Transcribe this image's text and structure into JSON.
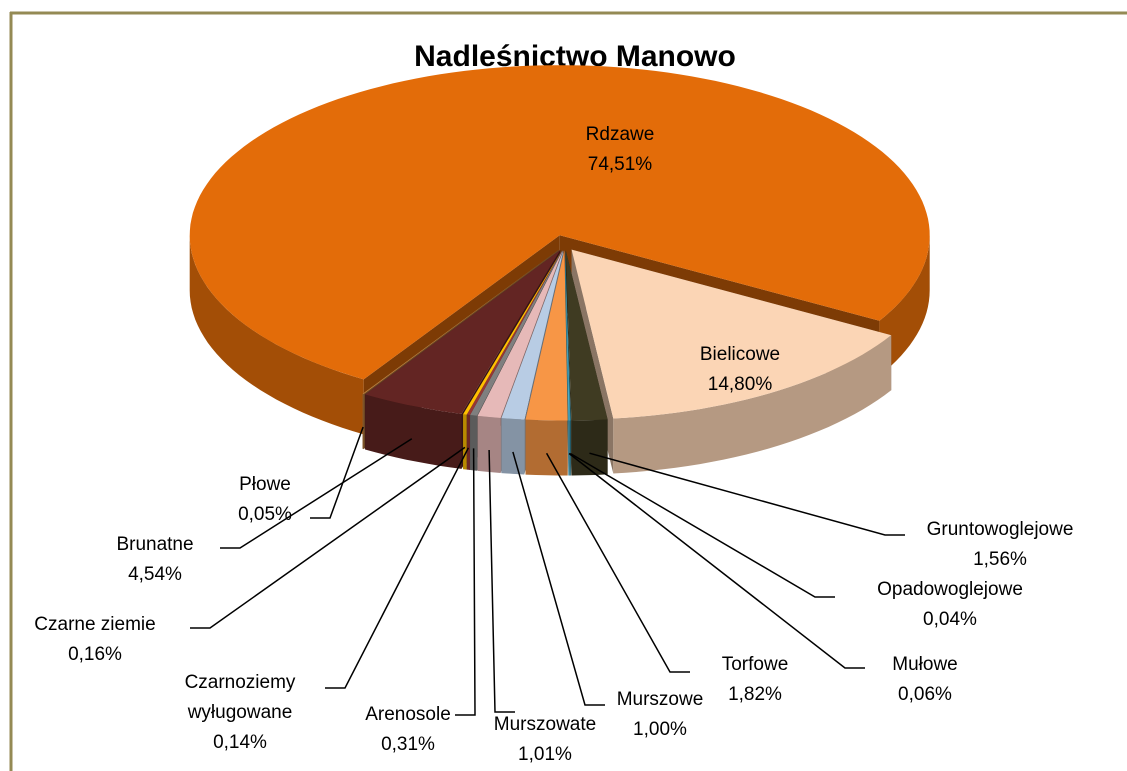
{
  "chart_data": {
    "type": "pie3d",
    "title": "Nadleśnictwo Manowo",
    "categories": [
      "Rdzawe",
      "Bielicowe",
      "Gruntowoglejowe",
      "Opadowoglejowe",
      "Mułowe",
      "Torfowe",
      "Murszowe",
      "Murszowate",
      "Arenosole",
      "Czarnoziemy wyługowane",
      "Czarne ziemie",
      "Brunatne",
      "Płowe"
    ],
    "values": [
      74.51,
      14.8,
      1.56,
      0.04,
      0.06,
      1.82,
      1.0,
      1.01,
      0.31,
      0.14,
      0.16,
      4.54,
      0.05
    ],
    "value_labels": [
      "74,51%",
      "14,80%",
      "1,56%",
      "0,04%",
      "0,06%",
      "1,82%",
      "1,00%",
      "1,01%",
      "0,31%",
      "0,14%",
      "0,16%",
      "4,54%",
      "0,05%"
    ],
    "colors": [
      "#e36c09",
      "#fbd5b5",
      "#3f3b22",
      "#31859c",
      "#4bacc6",
      "#f79646",
      "#b8cce4",
      "#e6b9b8",
      "#7f7f7f",
      "#953735",
      "#ffc000",
      "#632523",
      "#c0803f"
    ]
  }
}
